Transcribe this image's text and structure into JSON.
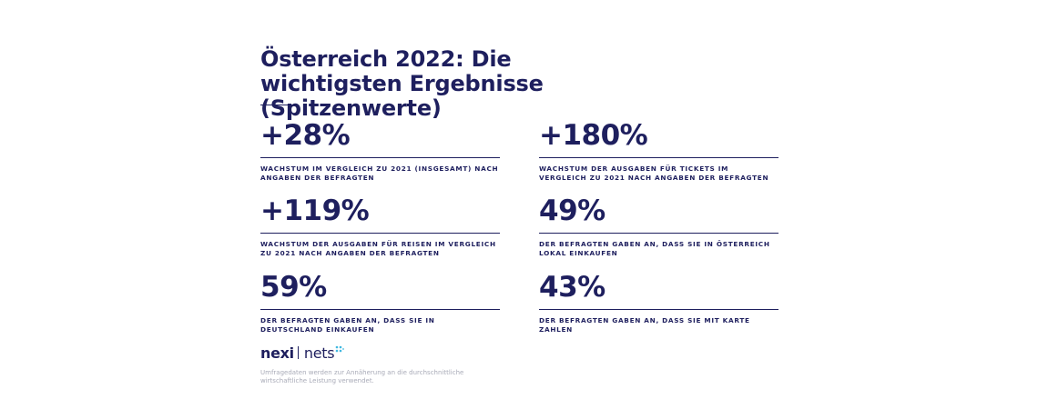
{
  "header": {
    "title": "Österreich 2022: Die wichtigsten Ergebnisse (Spitzenwerte)"
  },
  "stats": [
    {
      "value": "+28%",
      "description": "Wachstum im Vergleich zu 2021 (insgesamt) nach Angaben der Befragten"
    },
    {
      "value": "+180%",
      "description": "Wachstum der Ausgaben für Tickets im Vergleich zu 2021 nach Angaben der Befragten"
    },
    {
      "value": "+119%",
      "description": "Wachstum der Ausgaben für Reisen im Vergleich zu 2021 nach Angaben der Befragten"
    },
    {
      "value": "49%",
      "description": "der Befragten gaben an, dass sie in Österreich lokal einkaufen"
    },
    {
      "value": "59%",
      "description": "der Befragten gaben an, dass sie in Deutschland einkaufen"
    },
    {
      "value": "43%",
      "description": "der Befragten gaben an, dass sie mit Karte zahlen"
    }
  ],
  "logo": {
    "nexi": "nexi",
    "nets": "nets",
    "icon": "nets-dots-icon",
    "colors": {
      "brand": "#1e1f5e",
      "accent": "#3fb8e0"
    }
  },
  "footnote": "Umfragedaten werden zur Annäherung an die durchschnittliche wirtschaftliche Leistung verwendet."
}
